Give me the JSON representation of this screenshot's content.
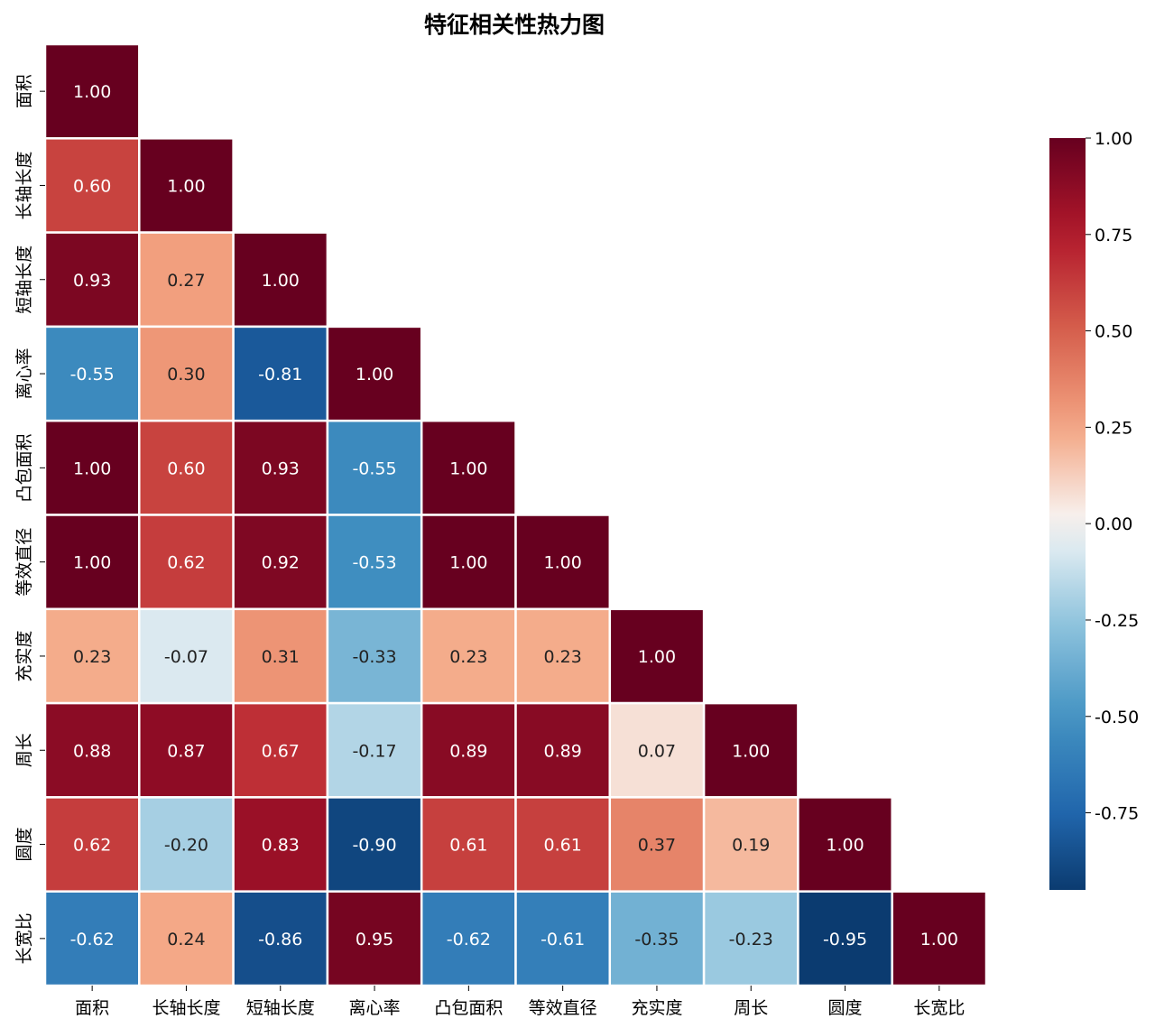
{
  "chart_data": {
    "type": "heatmap",
    "title": "特征相关性热力图",
    "variables": [
      "面积",
      "长轴长度",
      "短轴长度",
      "离心率",
      "凸包面积",
      "等效直径",
      "充实度",
      "周长",
      "圆度",
      "长宽比"
    ],
    "mask": "upper-triangle",
    "values": [
      [
        1.0
      ],
      [
        0.6,
        1.0
      ],
      [
        0.93,
        0.27,
        1.0
      ],
      [
        -0.55,
        0.3,
        -0.81,
        1.0
      ],
      [
        1.0,
        0.6,
        0.93,
        -0.55,
        1.0
      ],
      [
        1.0,
        0.62,
        0.92,
        -0.53,
        1.0,
        1.0
      ],
      [
        0.23,
        -0.07,
        0.31,
        -0.33,
        0.23,
        0.23,
        1.0
      ],
      [
        0.88,
        0.87,
        0.67,
        -0.17,
        0.89,
        0.89,
        0.07,
        1.0
      ],
      [
        0.62,
        -0.2,
        0.83,
        -0.9,
        0.61,
        0.61,
        0.37,
        0.19,
        1.0
      ],
      [
        -0.62,
        0.24,
        -0.86,
        0.95,
        -0.62,
        -0.61,
        -0.35,
        -0.23,
        -0.95,
        1.0
      ]
    ],
    "value_labels": [
      [
        "1.00"
      ],
      [
        "0.60",
        "1.00"
      ],
      [
        "0.93",
        "0.27",
        "1.00"
      ],
      [
        "-0.55",
        "0.30",
        "-0.81",
        "1.00"
      ],
      [
        "1.00",
        "0.60",
        "0.93",
        "-0.55",
        "1.00"
      ],
      [
        "1.00",
        "0.62",
        "0.92",
        "-0.53",
        "1.00",
        "1.00"
      ],
      [
        "0.23",
        "-0.07",
        "0.31",
        "-0.33",
        "0.23",
        "0.23",
        "1.00"
      ],
      [
        "0.88",
        "0.87",
        "0.67",
        "-0.17",
        "0.89",
        "0.89",
        "0.07",
        "1.00"
      ],
      [
        "0.62",
        "-0.20",
        "0.83",
        "-0.90",
        "0.61",
        "0.61",
        "0.37",
        "0.19",
        "1.00"
      ],
      [
        "-0.62",
        "0.24",
        "-0.86",
        "0.95",
        "-0.62",
        "-0.61",
        "-0.35",
        "-0.23",
        "-0.95",
        "1.00"
      ]
    ],
    "colormap": "RdBu_r",
    "vmin": -0.95,
    "vmax": 1.0,
    "colorbar": {
      "ticks": [
        1.0,
        0.75,
        0.5,
        0.25,
        0.0,
        -0.25,
        -0.5,
        -0.75
      ],
      "tick_labels": [
        "1.00",
        "0.75",
        "0.50",
        "0.25",
        "0.00",
        "-0.25",
        "-0.50",
        "-0.75"
      ],
      "placement": "right"
    },
    "grid": false
  }
}
